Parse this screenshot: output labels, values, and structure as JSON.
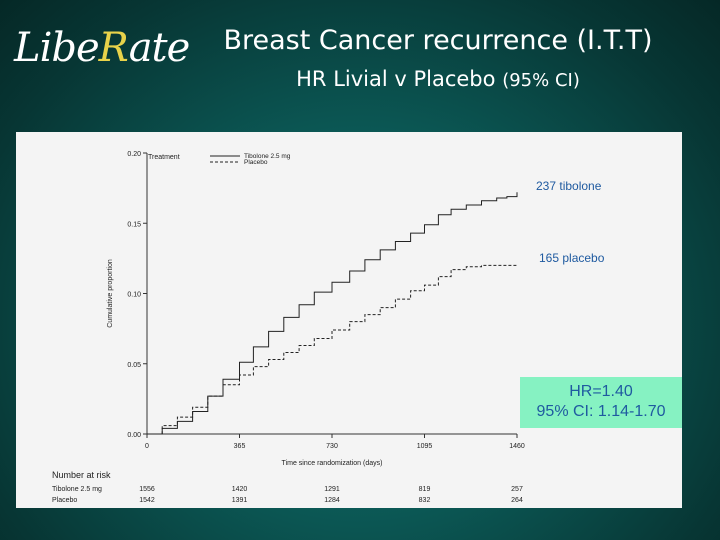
{
  "logo": {
    "text_before": "Libe",
    "text_r": "R",
    "text_after": "ate"
  },
  "slide": {
    "title": "Breast Cancer recurrence (I.T.T)",
    "subtitle": "HR Livial v Placebo",
    "subtitle_ci": "(95% CI)"
  },
  "hr_box": {
    "line1": "HR=1.40",
    "line2": "95% CI: 1.14-1.70"
  },
  "chart_data": {
    "type": "line",
    "xlabel": "Time since randomization (days)",
    "ylabel": "Cumulative proportion",
    "xlim": [
      0,
      1460
    ],
    "ylim": [
      0,
      0.2
    ],
    "x_ticks": [
      0,
      365,
      730,
      1095,
      1460
    ],
    "y_ticks": [
      "0.00",
      "0.05",
      "0.10",
      "0.15",
      "0.20"
    ],
    "legend_title": "Treatment",
    "legend_position": "top-left",
    "series": [
      {
        "name": "Tibolone 2.5 mg",
        "style": "solid",
        "end_label": "237 tibolone",
        "x": [
          0,
          60,
          120,
          180,
          240,
          300,
          365,
          420,
          480,
          540,
          600,
          660,
          730,
          800,
          860,
          920,
          980,
          1040,
          1095,
          1150,
          1200,
          1260,
          1320,
          1380,
          1420,
          1460
        ],
        "y": [
          0.0,
          0.004,
          0.009,
          0.016,
          0.027,
          0.039,
          0.051,
          0.062,
          0.073,
          0.083,
          0.092,
          0.101,
          0.108,
          0.116,
          0.124,
          0.131,
          0.137,
          0.143,
          0.149,
          0.156,
          0.16,
          0.163,
          0.166,
          0.168,
          0.169,
          0.172
        ]
      },
      {
        "name": "Placebo",
        "style": "dashed",
        "end_label": "165 placebo",
        "x": [
          0,
          60,
          120,
          180,
          240,
          300,
          365,
          420,
          480,
          540,
          600,
          660,
          730,
          800,
          860,
          920,
          980,
          1040,
          1095,
          1150,
          1200,
          1260,
          1320,
          1380,
          1420,
          1460
        ],
        "y": [
          0.0,
          0.006,
          0.012,
          0.019,
          0.027,
          0.035,
          0.042,
          0.048,
          0.053,
          0.058,
          0.063,
          0.068,
          0.074,
          0.08,
          0.085,
          0.09,
          0.096,
          0.102,
          0.106,
          0.112,
          0.117,
          0.119,
          0.12,
          0.12,
          0.12,
          0.12
        ]
      }
    ],
    "risk_table": {
      "title": "Number at risk",
      "rows": [
        {
          "label": "Tibolone 2.5 mg",
          "values": [
            "1556",
            "1420",
            "1291",
            "819",
            "257"
          ]
        },
        {
          "label": "Placebo",
          "values": [
            "1542",
            "1391",
            "1284",
            "832",
            "264"
          ]
        }
      ]
    }
  }
}
